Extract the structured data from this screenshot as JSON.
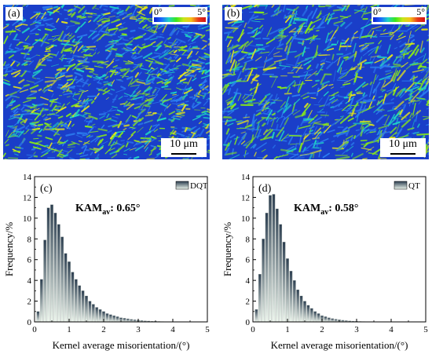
{
  "maps": [
    {
      "panel_label": "(a)",
      "legend": {
        "min_label": "0°",
        "max_label": "5°"
      },
      "scale_bar": "10 μm",
      "colors": {
        "background": "#1a3ec8",
        "low": "#2c7df0",
        "mid": "#1fd6c4",
        "high": "#86e61c",
        "peak": "#e6e41a"
      }
    },
    {
      "panel_label": "(b)",
      "legend": {
        "min_label": "0°",
        "max_label": "5°"
      },
      "scale_bar": "10 μm",
      "colors": {
        "background": "#1a3ec8",
        "low": "#2c7df0",
        "mid": "#1fd6c4",
        "high": "#86e61c",
        "peak": "#e6e41a"
      }
    }
  ],
  "chart_data": [
    {
      "type": "bar",
      "panel_label": "(c)",
      "legend": "DQT",
      "annotation": {
        "main": "KAM",
        "sub": "av",
        "value": ": 0.65°"
      },
      "xlabel": "Kernel average misorientation/(°)",
      "ylabel": "Frequency/%",
      "xlim": [
        0,
        5
      ],
      "ylim": [
        0,
        14
      ],
      "xticks": [
        "0",
        "1",
        "2",
        "3",
        "4",
        "5"
      ],
      "yticks": [
        "0",
        "2",
        "4",
        "6",
        "8",
        "10",
        "12",
        "14"
      ],
      "bin_width": 0.1,
      "x": [
        0.1,
        0.2,
        0.3,
        0.4,
        0.5,
        0.6,
        0.7,
        0.8,
        0.9,
        1.0,
        1.1,
        1.2,
        1.3,
        1.4,
        1.5,
        1.6,
        1.7,
        1.8,
        1.9,
        2.0,
        2.1,
        2.2,
        2.3,
        2.4,
        2.5,
        2.6,
        2.7,
        2.8,
        2.9,
        3.0,
        3.1,
        3.2,
        3.3,
        3.4,
        3.5,
        3.6,
        3.7,
        3.8,
        3.9,
        4.0,
        4.1,
        4.2,
        4.3,
        4.4,
        4.5
      ],
      "values": [
        1.0,
        4.1,
        7.9,
        11.0,
        11.3,
        10.5,
        9.4,
        8.2,
        6.6,
        5.8,
        4.8,
        4.1,
        3.5,
        3.0,
        2.5,
        2.0,
        1.7,
        1.4,
        1.2,
        1.0,
        0.8,
        0.7,
        0.6,
        0.5,
        0.4,
        0.35,
        0.3,
        0.25,
        0.2,
        0.16,
        0.13,
        0.1,
        0.08,
        0.06,
        0.05,
        0.04,
        0.03,
        0.02,
        0.02,
        0.01,
        0.01,
        0.01,
        0.01,
        0.01,
        0.01
      ],
      "colors": {
        "bar_dark": "#2c3e50",
        "bar_light": "#eef7ee"
      }
    },
    {
      "type": "bar",
      "panel_label": "(d)",
      "legend": "QT",
      "annotation": {
        "main": "KAM",
        "sub": "av",
        "value": ": 0.58°"
      },
      "xlabel": "Kernel average misorientation/(°)",
      "ylabel": "Frequency/%",
      "xlim": [
        0,
        5
      ],
      "ylim": [
        0,
        14
      ],
      "xticks": [
        "0",
        "1",
        "2",
        "3",
        "4",
        "5"
      ],
      "yticks": [
        "0",
        "2",
        "4",
        "6",
        "8",
        "10",
        "12",
        "14"
      ],
      "bin_width": 0.1,
      "x": [
        0.1,
        0.2,
        0.3,
        0.4,
        0.5,
        0.6,
        0.7,
        0.8,
        0.9,
        1.0,
        1.1,
        1.2,
        1.3,
        1.4,
        1.5,
        1.6,
        1.7,
        1.8,
        1.9,
        2.0,
        2.1,
        2.2,
        2.3,
        2.4,
        2.5,
        2.6,
        2.7,
        2.8,
        2.9,
        3.0,
        3.1,
        3.2,
        3.3,
        3.4,
        3.5,
        3.6,
        3.7,
        3.8,
        3.9,
        4.0,
        4.1,
        4.2,
        4.3,
        4.4,
        4.5
      ],
      "values": [
        1.2,
        4.6,
        8.0,
        10.5,
        12.2,
        12.3,
        10.9,
        9.4,
        7.7,
        6.1,
        4.9,
        4.0,
        3.1,
        2.5,
        2.0,
        1.6,
        1.3,
        1.0,
        0.8,
        0.6,
        0.5,
        0.4,
        0.32,
        0.26,
        0.2,
        0.16,
        0.12,
        0.09,
        0.07,
        0.05,
        0.04,
        0.03,
        0.02,
        0.02,
        0.01,
        0.01,
        0.01,
        0.01,
        0.01,
        0.01,
        0.01,
        0.01,
        0.01,
        0.01,
        0.01
      ],
      "colors": {
        "bar_dark": "#2c3e50",
        "bar_light": "#eef7ee"
      }
    }
  ]
}
